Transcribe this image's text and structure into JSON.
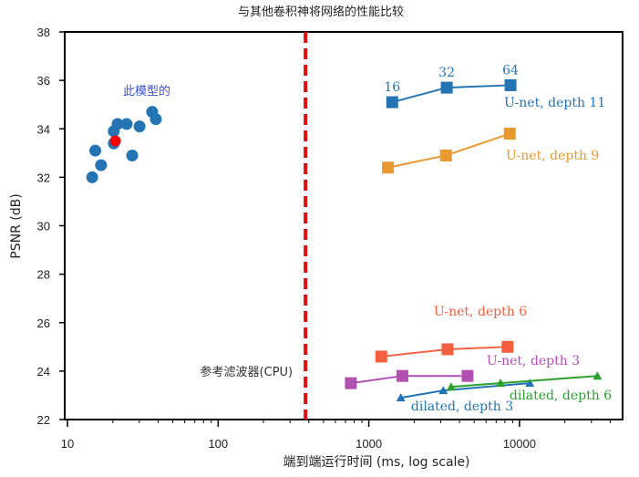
{
  "chart_data": {
    "type": "scatter",
    "title": "与其他卷积神将网络的性能比较",
    "xlabel": "端到端运行时间  (ms, log scale)",
    "ylabel": "PSNR (dB)",
    "xscale": "log",
    "xlim": [
      9.2,
      42000
    ],
    "ylim": [
      22,
      38
    ],
    "xticks": [
      10,
      100,
      1000,
      10000
    ],
    "xtick_labels": [
      "10",
      "100",
      "1000",
      "10000"
    ],
    "yticks": [
      22,
      24,
      26,
      28,
      30,
      32,
      34,
      36,
      38
    ],
    "ytick_labels": [
      "22",
      "24",
      "26",
      "28",
      "30",
      "32",
      "34",
      "36",
      "38"
    ],
    "grid": false,
    "colors": {
      "model_points": "#2474b4",
      "highlight_point": "#ff0000",
      "model_label": "#3b4fd8",
      "reference_line": "#e01010",
      "unet_d11": "#2474b4",
      "unet_d9": "#e89a30",
      "unet_d6": "#f26040",
      "unet_d3": "#b050b0",
      "dilated_d3": "#2474b4",
      "dilated_d6": "#2ca02c"
    },
    "scatter": {
      "name": "此模型的",
      "points": [
        {
          "x": 14.6,
          "y": 32.0
        },
        {
          "x": 15.3,
          "y": 33.1
        },
        {
          "x": 16.7,
          "y": 32.5
        },
        {
          "x": 20.3,
          "y": 33.9
        },
        {
          "x": 20.3,
          "y": 33.4
        },
        {
          "x": 21.5,
          "y": 34.2
        },
        {
          "x": 24.7,
          "y": 34.2
        },
        {
          "x": 26.9,
          "y": 32.9
        },
        {
          "x": 30.1,
          "y": 34.1
        },
        {
          "x": 36.5,
          "y": 34.7
        },
        {
          "x": 38.6,
          "y": 34.4
        }
      ],
      "highlight": {
        "x": 20.8,
        "y": 33.5
      }
    },
    "reference_line": {
      "label": "参考滤波器(CPU)",
      "x": 380
    },
    "series": [
      {
        "name": "U-net, depth 11",
        "marker": "square",
        "color_key": "unet_d11",
        "x": [
          1430,
          3290,
          8720
        ],
        "values": [
          35.1,
          35.7,
          35.8
        ],
        "point_labels": [
          "16",
          "32",
          "64"
        ]
      },
      {
        "name": "U-net, depth 9",
        "marker": "square",
        "color_key": "unet_d9",
        "x": [
          1340,
          3250,
          8620
        ],
        "values": [
          32.4,
          32.9,
          33.8
        ]
      },
      {
        "name": "U-net, depth 6",
        "marker": "square",
        "color_key": "unet_d6",
        "x": [
          1210,
          3330,
          8340
        ],
        "values": [
          24.6,
          24.9,
          25.0
        ]
      },
      {
        "name": "U-net, depth 3",
        "marker": "square",
        "color_key": "unet_d3",
        "x": [
          760,
          1670,
          4520
        ],
        "values": [
          23.5,
          23.8,
          23.8
        ]
      },
      {
        "name": "dilated, depth 3",
        "marker": "triangle",
        "color_key": "dilated_d3",
        "x": [
          1630,
          3120,
          11700
        ],
        "values": [
          22.9,
          23.2,
          23.5
        ]
      },
      {
        "name": "dilated, depth 6",
        "marker": "triangle",
        "color_key": "dilated_d6",
        "x": [
          3520,
          7480,
          32900
        ],
        "values": [
          23.35,
          23.5,
          23.8
        ]
      }
    ]
  }
}
